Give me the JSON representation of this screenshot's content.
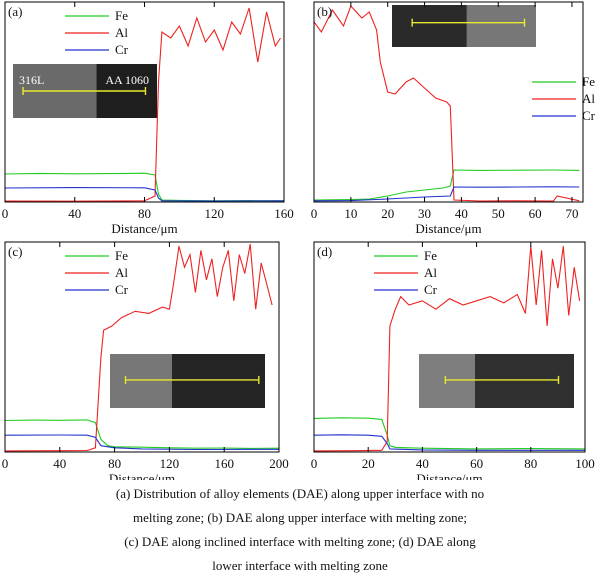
{
  "chart_data": [
    {
      "type": "line",
      "panel_label": "(a)",
      "xlabel": "",
      "xlim": [
        0,
        160
      ],
      "ylim": [
        0,
        100
      ],
      "x_ticks": [
        0,
        40,
        80,
        120,
        160
      ],
      "legend": [
        "Fe",
        "Al",
        "Cr"
      ],
      "legend_position": "top-left",
      "colors": {
        "Fe": "#22cc22",
        "Al": "#ee2222",
        "Cr": "#2233cc"
      },
      "inset": {
        "position": "mid-left",
        "labels": [
          "316L",
          "AA 1060"
        ]
      },
      "series": [
        {
          "name": "Fe",
          "x": [
            0,
            20,
            40,
            60,
            80,
            86,
            88,
            90,
            100,
            120,
            140,
            160
          ],
          "y": [
            14,
            14.3,
            14.1,
            14.2,
            14.4,
            13.5,
            4,
            1,
            0.8,
            0.6,
            0.7,
            0.6
          ]
        },
        {
          "name": "Al",
          "x": [
            0,
            40,
            80,
            86,
            88,
            90,
            95,
            100,
            105,
            110,
            115,
            120,
            125,
            130,
            135,
            140,
            145,
            150,
            155,
            158
          ],
          "y": [
            0.5,
            0.4,
            0.6,
            3,
            60,
            85,
            82,
            88,
            78,
            92,
            80,
            86,
            76,
            90,
            84,
            97,
            70,
            95,
            78,
            82
          ]
        },
        {
          "name": "Cr",
          "x": [
            0,
            40,
            80,
            86,
            88,
            90,
            120,
            160
          ],
          "y": [
            7,
            7.2,
            7.1,
            6,
            2,
            0.6,
            0.5,
            0.6
          ]
        }
      ]
    },
    {
      "type": "line",
      "panel_label": "(b)",
      "xlabel": "",
      "xlim": [
        0,
        73
      ],
      "ylim": [
        0,
        100
      ],
      "x_ticks": [
        0,
        10,
        20,
        30,
        40,
        50,
        60,
        70
      ],
      "legend": [
        "Fe",
        "Al",
        "Cr"
      ],
      "legend_position": "middle-right",
      "colors": {
        "Fe": "#22cc22",
        "Al": "#ee2222",
        "Cr": "#2233cc"
      },
      "inset": {
        "position": "top-right",
        "labels": []
      },
      "series": [
        {
          "name": "Fe",
          "x": [
            0,
            10,
            15,
            20,
            25,
            30,
            35,
            37,
            38,
            45,
            55,
            65,
            72
          ],
          "y": [
            1,
            1.2,
            1.5,
            3,
            5,
            6,
            7,
            8,
            16,
            15.8,
            15.9,
            16,
            15.8
          ]
        },
        {
          "name": "Al",
          "x": [
            0,
            2,
            5,
            8,
            10,
            13,
            15,
            17,
            18,
            20,
            22,
            25,
            27,
            30,
            33,
            36,
            37,
            38,
            45,
            55,
            65,
            66,
            72
          ],
          "y": [
            90,
            85,
            96,
            88,
            98,
            92,
            95,
            86,
            70,
            55,
            54,
            60,
            62,
            57,
            52,
            50,
            48,
            1,
            0.5,
            0.6,
            0.5,
            3,
            0.6
          ]
        },
        {
          "name": "Cr",
          "x": [
            0,
            10,
            20,
            30,
            37,
            38,
            45,
            55,
            65,
            72
          ],
          "y": [
            0.6,
            0.7,
            1.5,
            2.5,
            3,
            7.5,
            7.4,
            7.5,
            7.6,
            7.5
          ]
        }
      ]
    },
    {
      "type": "line",
      "panel_label": "(c)",
      "xlabel": "",
      "xlim": [
        0,
        200
      ],
      "ylim": [
        0,
        100
      ],
      "x_ticks": [
        0,
        40,
        80,
        120,
        160,
        200
      ],
      "legend": [
        "Fe",
        "Al",
        "Cr"
      ],
      "legend_position": "top-left",
      "colors": {
        "Fe": "#22cc22",
        "Al": "#ee2222",
        "Cr": "#2233cc"
      },
      "inset": {
        "position": "mid-right",
        "labels": []
      },
      "series": [
        {
          "name": "Fe",
          "x": [
            0,
            20,
            40,
            60,
            66,
            70,
            75,
            80,
            100,
            120,
            140,
            160,
            180,
            200
          ],
          "y": [
            15,
            15.2,
            15.1,
            15.3,
            14,
            6,
            3,
            2.5,
            2.3,
            2,
            1.8,
            1.9,
            1.7,
            1.8
          ]
        },
        {
          "name": "Al",
          "x": [
            0,
            40,
            60,
            66,
            70,
            72,
            78,
            85,
            95,
            105,
            115,
            120,
            123,
            127,
            131,
            135,
            139,
            143,
            147,
            151,
            155,
            159,
            163,
            167,
            171,
            175,
            179,
            183,
            187,
            191,
            195
          ],
          "y": [
            0.5,
            0.6,
            0.7,
            2,
            45,
            58,
            60,
            64,
            67,
            66,
            69,
            68,
            80,
            98,
            88,
            94,
            76,
            96,
            82,
            92,
            74,
            88,
            96,
            72,
            94,
            85,
            99,
            68,
            90,
            80,
            70
          ]
        },
        {
          "name": "Cr",
          "x": [
            0,
            40,
            60,
            66,
            70,
            80,
            100,
            140,
            200
          ],
          "y": [
            8,
            8.1,
            8,
            7,
            3,
            2,
            1.5,
            1.2,
            1.3
          ]
        }
      ]
    },
    {
      "type": "line",
      "panel_label": "(d)",
      "xlabel": "",
      "xlim": [
        0,
        100
      ],
      "ylim": [
        0,
        100
      ],
      "x_ticks": [
        0,
        20,
        40,
        60,
        80,
        100
      ],
      "legend": [
        "Fe",
        "Al",
        "Cr"
      ],
      "legend_position": "top-left",
      "colors": {
        "Fe": "#22cc22",
        "Al": "#ee2222",
        "Cr": "#2233cc"
      },
      "inset": {
        "position": "mid-right",
        "labels": []
      },
      "series": [
        {
          "name": "Fe",
          "x": [
            0,
            10,
            20,
            25,
            27,
            28,
            30,
            40,
            60,
            80,
            100
          ],
          "y": [
            16,
            16.3,
            16.1,
            15.5,
            8,
            3,
            2.2,
            1.8,
            1.5,
            1.6,
            1.5
          ]
        },
        {
          "name": "Al",
          "x": [
            0,
            15,
            25,
            27,
            28,
            30,
            32,
            35,
            40,
            45,
            50,
            55,
            60,
            65,
            70,
            75,
            78,
            80,
            82,
            84,
            86,
            88,
            90,
            92,
            94,
            96,
            98
          ],
          "y": [
            0.5,
            0.6,
            0.8,
            5,
            60,
            68,
            74,
            70,
            72,
            68,
            73,
            70,
            72,
            74,
            71,
            75,
            66,
            98,
            70,
            96,
            60,
            92,
            78,
            98,
            65,
            88,
            72
          ]
        },
        {
          "name": "Cr",
          "x": [
            0,
            10,
            20,
            25,
            27,
            28,
            40,
            60,
            100
          ],
          "y": [
            8,
            8.2,
            8,
            7.5,
            4,
            1.5,
            1,
            0.8,
            0.8
          ]
        }
      ]
    }
  ],
  "xlabel_common": "Distance/μm",
  "caption_lines": [
    "(a) Distribution of alloy elements (DAE) along upper interface with no",
    "melting zone; (b) DAE along upper interface with melting zone;",
    "(c) DAE along inclined interface with melting zone; (d) DAE along",
    "lower interface with melting zone"
  ]
}
